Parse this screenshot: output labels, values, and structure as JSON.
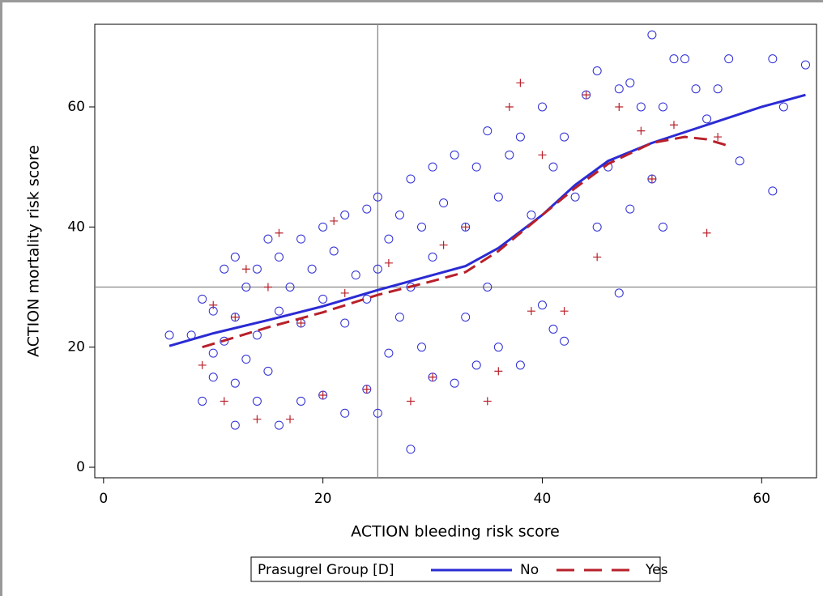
{
  "chart_data": {
    "type": "scatter",
    "x_label": "ACTION bleeding risk score",
    "y_label": "ACTION mortality risk score",
    "xlim": [
      -0.8,
      65
    ],
    "ylim": [
      -1.75,
      73.75
    ],
    "xticks": [
      0,
      20,
      40,
      60
    ],
    "yticks": [
      0,
      20,
      40,
      60
    ],
    "reference_x": 25,
    "reference_y": 30,
    "legend_title": "Prasugrel Group [D]",
    "series": [
      {
        "name": "No",
        "color": "#2b2bd4",
        "marker": "circle",
        "line_style": "solid",
        "x": [
          6,
          8,
          9,
          9,
          10,
          10,
          10,
          11,
          11,
          12,
          12,
          12,
          12,
          13,
          13,
          14,
          14,
          14,
          15,
          15,
          16,
          16,
          16,
          17,
          18,
          18,
          18,
          19,
          20,
          20,
          20,
          21,
          22,
          22,
          22,
          23,
          24,
          24,
          24,
          25,
          25,
          25,
          26,
          26,
          27,
          27,
          28,
          28,
          28,
          29,
          29,
          30,
          30,
          30,
          31,
          32,
          32,
          33,
          33,
          34,
          34,
          35,
          35,
          36,
          36,
          37,
          38,
          38,
          39,
          40,
          40,
          41,
          41,
          42,
          42,
          43,
          44,
          45,
          45,
          46,
          47,
          47,
          48,
          48,
          49,
          50,
          50,
          51,
          51,
          52,
          53,
          54,
          55,
          56,
          57,
          58,
          61,
          61,
          62,
          64
        ],
        "values": [
          22,
          22,
          28,
          11,
          19,
          26,
          15,
          33,
          21,
          35,
          7,
          25,
          14,
          30,
          18,
          33,
          11,
          22,
          38,
          16,
          35,
          7,
          26,
          30,
          38,
          11,
          24,
          33,
          40,
          12,
          28,
          36,
          42,
          9,
          24,
          32,
          43,
          13,
          28,
          45,
          9,
          33,
          38,
          19,
          42,
          25,
          48,
          3,
          30,
          40,
          20,
          50,
          15,
          35,
          44,
          52,
          14,
          40,
          25,
          50,
          17,
          56,
          30,
          45,
          20,
          52,
          55,
          17,
          42,
          60,
          27,
          50,
          23,
          55,
          21,
          45,
          62,
          66,
          40,
          50,
          63,
          29,
          64,
          43,
          60,
          72,
          48,
          60,
          40,
          68,
          68,
          63,
          58,
          63,
          68,
          51,
          68,
          46,
          60,
          67
        ],
        "fit": {
          "x": [
            6,
            10,
            15,
            20,
            25,
            30,
            33,
            36,
            40,
            43,
            46,
            50,
            55,
            60,
            64
          ],
          "values": [
            20.2,
            22.3,
            24.5,
            26.8,
            29.5,
            32,
            33.5,
            36.5,
            42,
            47,
            51,
            54,
            57,
            60,
            62
          ]
        }
      },
      {
        "name": "Yes",
        "color": "#b8202a",
        "marker": "plus",
        "line_style": "dashed",
        "x": [
          9,
          10,
          11,
          12,
          13,
          14,
          15,
          16,
          17,
          18,
          20,
          21,
          22,
          24,
          26,
          28,
          30,
          31,
          33,
          35,
          36,
          37,
          38,
          39,
          40,
          42,
          44,
          45,
          47,
          49,
          50,
          52,
          55,
          56
        ],
        "values": [
          17,
          27,
          11,
          25,
          33,
          8,
          30,
          39,
          8,
          24,
          12,
          41,
          29,
          13,
          34,
          11,
          15,
          37,
          40,
          11,
          16,
          60,
          64,
          26,
          52,
          26,
          62,
          35,
          60,
          56,
          48,
          57,
          39,
          55
        ],
        "fit": {
          "x": [
            9,
            15,
            20,
            25,
            30,
            33,
            36,
            40,
            43,
            46,
            50,
            53,
            55,
            57
          ],
          "values": [
            20,
            23.3,
            25.8,
            28.7,
            31,
            32.5,
            36,
            42,
            46.5,
            50.5,
            54,
            55,
            54.6,
            53.5
          ]
        }
      }
    ]
  }
}
